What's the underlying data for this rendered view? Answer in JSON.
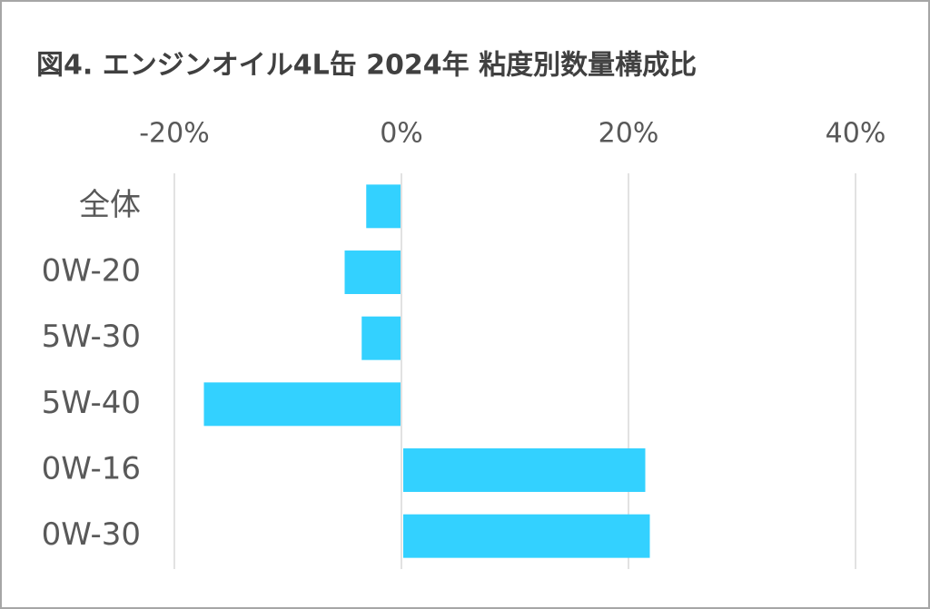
{
  "chart_data": {
    "type": "bar",
    "orientation": "horizontal",
    "title": "図4. エンジンオイル4L缶 2024年 粘度別数量構成比",
    "categories": [
      "全体",
      "0W-20",
      "5W-30",
      "5W-40",
      "0W-16",
      "0W-30"
    ],
    "values": [
      -3.1,
      -5.0,
      -3.5,
      -17.4,
      21.4,
      21.8
    ],
    "color": "#33d1ff",
    "xlim": [
      -20,
      40
    ],
    "xticks": [
      {
        "value": -20,
        "label": "-20%"
      },
      {
        "value": 0,
        "label": "0%"
      },
      {
        "value": 20,
        "label": "20%"
      },
      {
        "value": 40,
        "label": "40%"
      }
    ],
    "grid": true
  }
}
